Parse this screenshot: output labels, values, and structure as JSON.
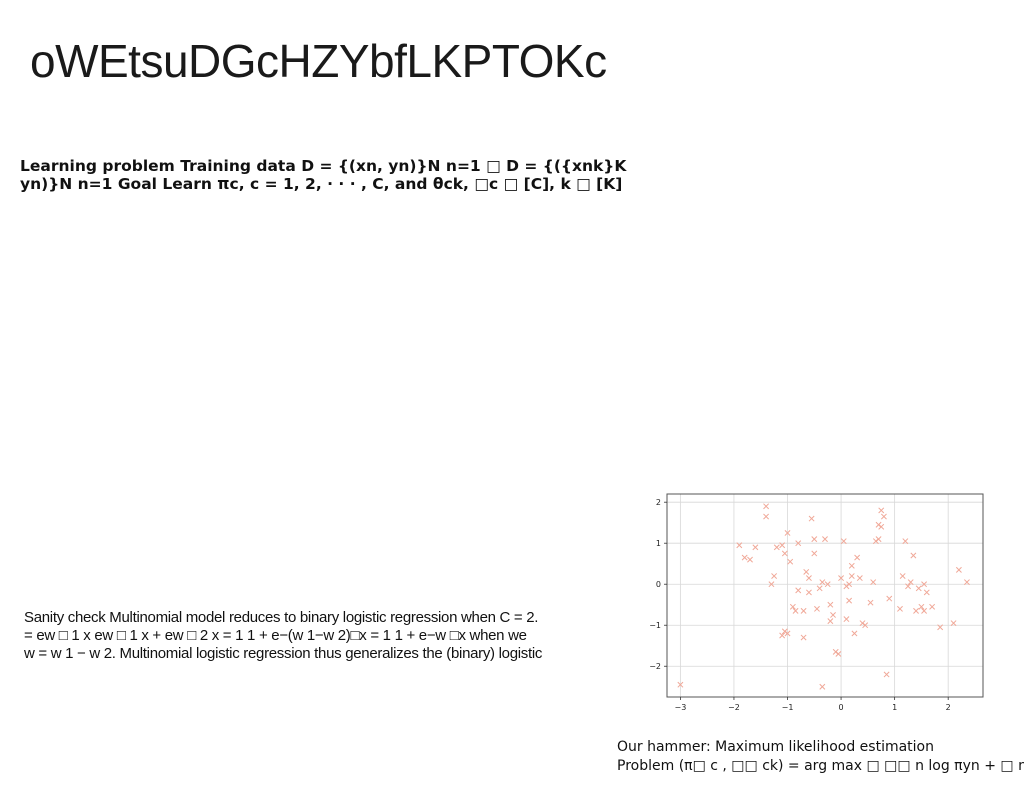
{
  "slide": {
    "title": "oWEtsuDGcHZYbfLKPTOKc",
    "learning_problem": [
      "Learning problem Training data D = {(xn, yn)}N n=1 □ D = {({xnk}K",
      "yn)}N n=1 Goal Learn πc, c = 1, 2, · · · , C, and θck, □c □ [C], k □ [K]"
    ],
    "sanity_check": [
      "Sanity check Multinomial model reduces to binary logistic regression when C = 2.",
      "= ew □ 1 x ew □ 1 x + ew □ 2 x = 1 1 + e−(w 1−w 2)□x = 1 1 + e−w □x when we",
      "w = w 1 − w 2. Multinomial logistic regression thus generalizes the (binary) logistic"
    ],
    "hammer": [
      "Our hammer: Maximum likelihood estimation",
      "Problem (π□ c , □□ ck) = arg max □ □□ n log πyn + □ n,k"
    ]
  },
  "chart_data": {
    "type": "scatter",
    "marker": "x",
    "color": "#f0a898",
    "grid": true,
    "xlim": [
      -3.25,
      2.65
    ],
    "ylim": [
      -2.75,
      2.2
    ],
    "xticks": [
      -3,
      -2,
      -1,
      0,
      1,
      2
    ],
    "yticks": [
      -2,
      -1,
      0,
      1,
      2
    ],
    "xtick_labels": [
      "−3",
      "−2",
      "−1",
      "0",
      "1",
      "2"
    ],
    "ytick_labels": [
      "−2",
      "−1",
      "0",
      "1",
      "2"
    ],
    "points": [
      [
        -3.0,
        -2.45
      ],
      [
        -1.9,
        0.95
      ],
      [
        -1.8,
        0.65
      ],
      [
        -1.7,
        0.6
      ],
      [
        -1.6,
        0.9
      ],
      [
        -1.4,
        1.9
      ],
      [
        -1.4,
        1.65
      ],
      [
        -1.3,
        0.0
      ],
      [
        -1.25,
        0.2
      ],
      [
        -1.2,
        0.9
      ],
      [
        -1.1,
        0.95
      ],
      [
        -1.05,
        0.75
      ],
      [
        -1.0,
        1.25
      ],
      [
        -0.95,
        0.55
      ],
      [
        -1.1,
        -1.25
      ],
      [
        -1.05,
        -1.15
      ],
      [
        -1.0,
        -1.2
      ],
      [
        -0.9,
        -0.55
      ],
      [
        -0.85,
        -0.65
      ],
      [
        -0.8,
        -0.15
      ],
      [
        -0.7,
        -1.3
      ],
      [
        -0.7,
        -0.65
      ],
      [
        -0.65,
        0.3
      ],
      [
        -0.6,
        0.15
      ],
      [
        -0.55,
        1.6
      ],
      [
        -0.5,
        1.1
      ],
      [
        -0.45,
        -0.6
      ],
      [
        -0.4,
        -0.1
      ],
      [
        -0.35,
        0.05
      ],
      [
        -0.3,
        1.1
      ],
      [
        -0.25,
        0.0
      ],
      [
        -0.2,
        -0.5
      ],
      [
        -0.15,
        -0.75
      ],
      [
        -0.1,
        -1.65
      ],
      [
        -0.05,
        -1.7
      ],
      [
        -0.35,
        -2.5
      ],
      [
        -0.5,
        0.75
      ],
      [
        -0.6,
        -0.2
      ],
      [
        -0.8,
        1.0
      ],
      [
        0.0,
        0.15
      ],
      [
        0.05,
        1.05
      ],
      [
        0.1,
        -0.05
      ],
      [
        0.15,
        -0.4
      ],
      [
        0.2,
        0.45
      ],
      [
        0.2,
        0.2
      ],
      [
        0.25,
        -1.2
      ],
      [
        0.3,
        0.65
      ],
      [
        0.35,
        0.15
      ],
      [
        0.4,
        -0.95
      ],
      [
        0.45,
        -1.0
      ],
      [
        0.55,
        -0.45
      ],
      [
        0.6,
        0.05
      ],
      [
        0.65,
        1.05
      ],
      [
        0.7,
        1.45
      ],
      [
        0.75,
        1.8
      ],
      [
        0.8,
        1.65
      ],
      [
        0.85,
        -2.2
      ],
      [
        0.9,
        -0.35
      ],
      [
        0.7,
        1.1
      ],
      [
        0.75,
        1.4
      ],
      [
        1.1,
        -0.6
      ],
      [
        1.15,
        0.2
      ],
      [
        1.2,
        1.05
      ],
      [
        1.25,
        -0.05
      ],
      [
        1.3,
        0.05
      ],
      [
        1.35,
        0.7
      ],
      [
        1.4,
        -0.65
      ],
      [
        1.45,
        -0.1
      ],
      [
        1.5,
        -0.55
      ],
      [
        1.55,
        0.0
      ],
      [
        1.6,
        -0.2
      ],
      [
        1.7,
        -0.55
      ],
      [
        1.85,
        -1.05
      ],
      [
        2.1,
        -0.95
      ],
      [
        2.2,
        0.35
      ],
      [
        2.35,
        0.05
      ],
      [
        -0.2,
        -0.9
      ],
      [
        0.1,
        -0.85
      ],
      [
        0.15,
        0.0
      ],
      [
        1.55,
        -0.65
      ]
    ]
  }
}
